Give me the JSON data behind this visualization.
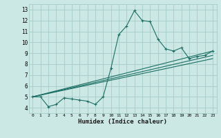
{
  "title": "",
  "xlabel": "Humidex (Indice chaleur)",
  "ylabel": "",
  "bg_color": "#cce8e4",
  "grid_color": "#aacfcb",
  "line_color": "#1a6e64",
  "xlim": [
    -0.5,
    23.5
  ],
  "ylim": [
    3.5,
    13.5
  ],
  "xticks": [
    0,
    1,
    2,
    3,
    4,
    5,
    6,
    7,
    8,
    9,
    10,
    11,
    12,
    13,
    14,
    15,
    16,
    17,
    18,
    19,
    20,
    21,
    22,
    23
  ],
  "yticks": [
    4,
    5,
    6,
    7,
    8,
    9,
    10,
    11,
    12,
    13
  ],
  "line1_x": [
    0,
    1,
    2,
    3,
    4,
    5,
    6,
    7,
    8,
    9,
    10,
    11,
    12,
    13,
    14,
    15,
    16,
    17,
    18,
    19,
    20,
    21,
    22,
    23
  ],
  "line1_y": [
    5.0,
    5.0,
    4.1,
    4.3,
    4.9,
    4.8,
    4.7,
    4.6,
    4.3,
    5.0,
    7.6,
    10.7,
    11.5,
    12.9,
    12.0,
    11.9,
    10.3,
    9.4,
    9.2,
    9.5,
    8.5,
    8.7,
    8.8,
    9.2
  ],
  "line2_x": [
    0,
    23
  ],
  "line2_y": [
    5.0,
    9.2
  ],
  "line3_x": [
    0,
    23
  ],
  "line3_y": [
    5.0,
    8.8
  ],
  "line4_x": [
    0,
    23
  ],
  "line4_y": [
    5.0,
    8.5
  ],
  "marker": "+"
}
